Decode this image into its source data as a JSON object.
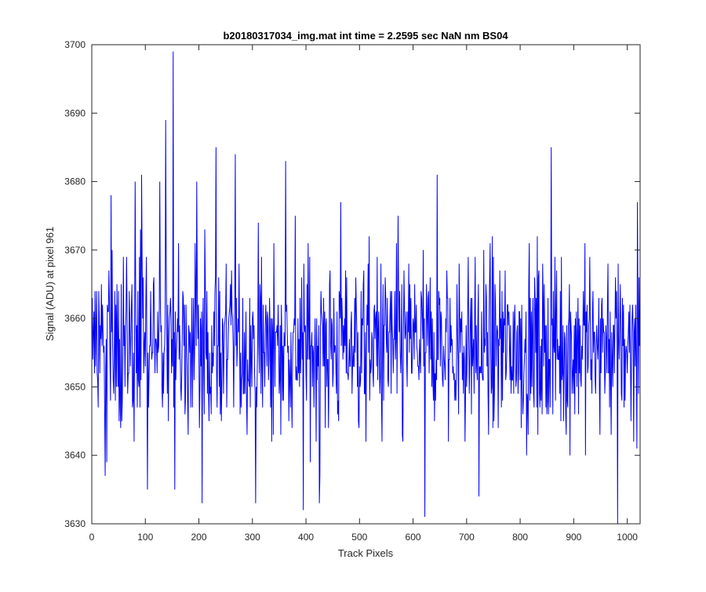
{
  "chart_data": {
    "type": "line",
    "title": "b20180317034_img.mat int time = 2.2595 sec  NaN nm BS04",
    "xlabel": "Track Pixels",
    "ylabel": "Signal (ADU) at pixel 961",
    "xlim": [
      0,
      1024
    ],
    "ylim": [
      3630,
      3700
    ],
    "xticks": [
      0,
      100,
      200,
      300,
      400,
      500,
      600,
      700,
      800,
      900,
      1000
    ],
    "yticks": [
      3630,
      3640,
      3650,
      3660,
      3670,
      3680,
      3690,
      3700
    ],
    "grid": false,
    "series": [
      {
        "color": "#0000ff",
        "x_start": 1,
        "x_step": 1,
        "count": 1024,
        "mean": 3656,
        "spread": 6.5,
        "min": 3630,
        "max": 3699,
        "highlights": [
          {
            "x": 25,
            "y": 3637
          },
          {
            "x": 36,
            "y": 3678
          },
          {
            "x": 81,
            "y": 3680
          },
          {
            "x": 93,
            "y": 3681
          },
          {
            "x": 104,
            "y": 3635
          },
          {
            "x": 127,
            "y": 3680
          },
          {
            "x": 138,
            "y": 3689
          },
          {
            "x": 152,
            "y": 3699
          },
          {
            "x": 155,
            "y": 3635
          },
          {
            "x": 196,
            "y": 3680
          },
          {
            "x": 206,
            "y": 3633
          },
          {
            "x": 232,
            "y": 3685
          },
          {
            "x": 268,
            "y": 3684
          },
          {
            "x": 306,
            "y": 3633
          },
          {
            "x": 362,
            "y": 3683
          },
          {
            "x": 395,
            "y": 3632
          },
          {
            "x": 425,
            "y": 3633
          },
          {
            "x": 465,
            "y": 3677
          },
          {
            "x": 622,
            "y": 3631
          },
          {
            "x": 645,
            "y": 3681
          },
          {
            "x": 723,
            "y": 3634
          },
          {
            "x": 858,
            "y": 3685
          },
          {
            "x": 982,
            "y": 3630
          },
          {
            "x": 1019,
            "y": 3677
          }
        ]
      }
    ]
  }
}
